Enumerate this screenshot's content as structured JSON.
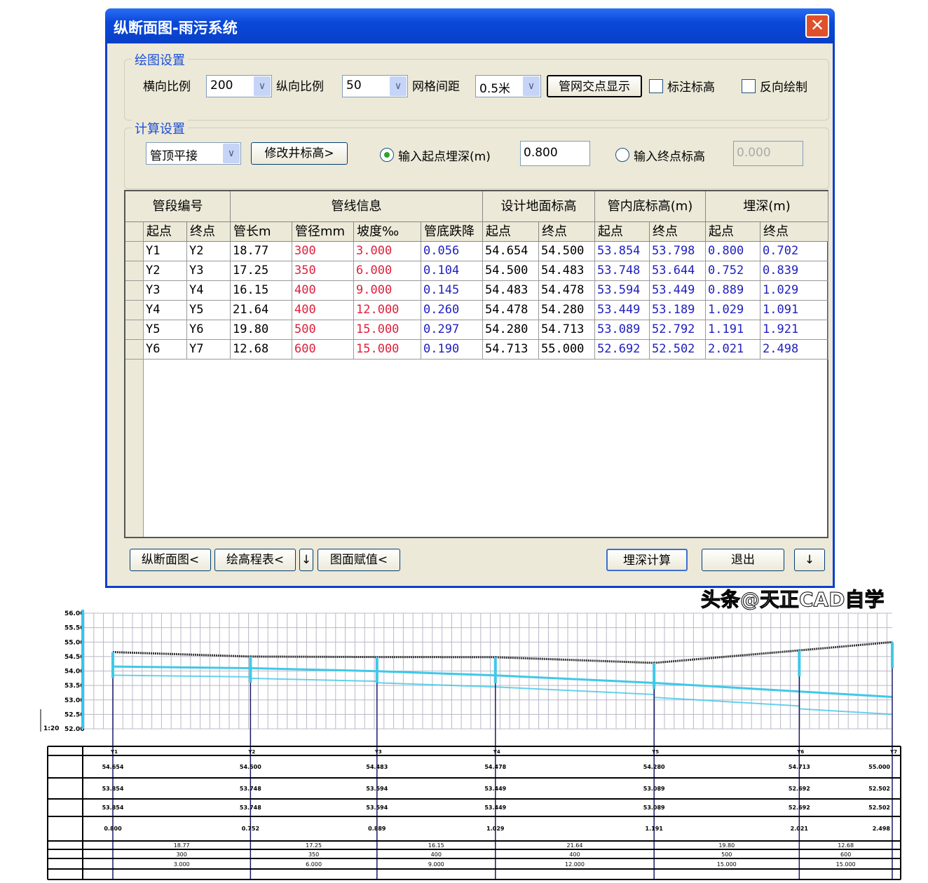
{
  "window": {
    "title": "纵断面图-雨污系统",
    "close_icon": "close-icon"
  },
  "drawing_settings": {
    "legend": "绘图设置",
    "h_scale_label": "横向比例",
    "h_scale": "200",
    "v_scale_label": "纵向比例",
    "v_scale": "50",
    "grid_label": "网格间距",
    "grid": "0.5米",
    "show_intersections": "管网交点显示",
    "mark_elevation": "标注标高",
    "reverse_draw": "反向绘制",
    "mark_elevation_checked": false,
    "reverse_draw_checked": false
  },
  "calc_settings": {
    "legend": "计算设置",
    "connection": "管顶平接",
    "modify_well": "修改井标高>",
    "radio_start": "输入起点埋深(m)",
    "start_value": "0.800",
    "radio_end": "输入终点标高",
    "end_value": "0.000",
    "selected": "start"
  },
  "table": {
    "groups": [
      "管段编号",
      "管线信息",
      "设计地面标高",
      "管内底标高(m)",
      "埋深(m)"
    ],
    "columns": [
      "起点",
      "终点",
      "管长m",
      "管径mm",
      "坡度‰",
      "管底跌降",
      "起点",
      "终点",
      "起点",
      "终点",
      "起点",
      "终点"
    ],
    "rows": [
      [
        "Y1",
        "Y2",
        "18.77",
        "300",
        "3.000",
        "0.056",
        "54.654",
        "54.500",
        "53.854",
        "53.798",
        "0.800",
        "0.702"
      ],
      [
        "Y2",
        "Y3",
        "17.25",
        "350",
        "6.000",
        "0.104",
        "54.500",
        "54.483",
        "53.748",
        "53.644",
        "0.752",
        "0.839"
      ],
      [
        "Y3",
        "Y4",
        "16.15",
        "400",
        "9.000",
        "0.145",
        "54.483",
        "54.478",
        "53.594",
        "53.449",
        "0.889",
        "1.029"
      ],
      [
        "Y4",
        "Y5",
        "21.64",
        "400",
        "12.000",
        "0.260",
        "54.478",
        "54.280",
        "53.449",
        "53.189",
        "1.029",
        "1.091"
      ],
      [
        "Y5",
        "Y6",
        "19.80",
        "500",
        "15.000",
        "0.297",
        "54.280",
        "54.713",
        "53.089",
        "52.792",
        "1.191",
        "1.921"
      ],
      [
        "Y6",
        "Y7",
        "12.68",
        "600",
        "15.000",
        "0.190",
        "54.713",
        "55.000",
        "52.692",
        "52.502",
        "2.021",
        "2.498"
      ]
    ]
  },
  "buttons": {
    "profile": "纵断面图<",
    "elev_table": "绘高程表<",
    "down1": "↓",
    "assign": "图面赋值<",
    "calc_depth": "埋深计算",
    "exit": "退出",
    "down2": "↓"
  },
  "profile": {
    "y_ticks": [
      "52.00",
      "52.50",
      "53.00",
      "53.50",
      "54.00",
      "54.50",
      "55.00",
      "55.50",
      "56.00"
    ],
    "scale_label": "1:20",
    "last_station": "Y7",
    "ground_color": "#333333",
    "pipe_color": "#40c8e8",
    "station_color": "#1a1a6a"
  },
  "watermark": "头条@天正CAD自学"
}
